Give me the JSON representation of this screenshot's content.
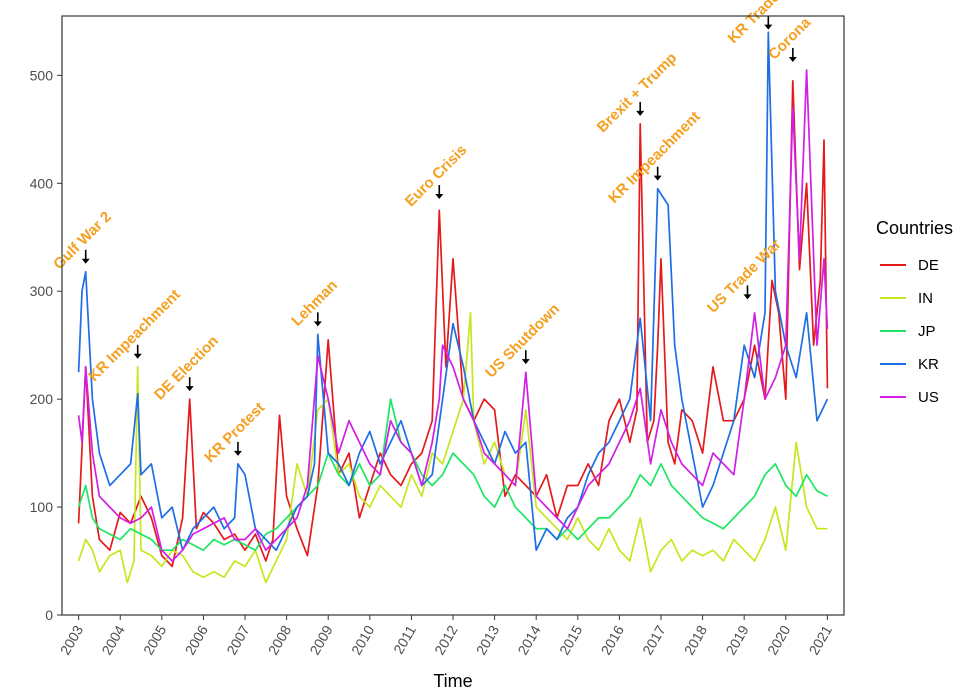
{
  "chart_data": {
    "type": "line",
    "xlabel": "Time",
    "ylabel": "",
    "xlim": [
      2002.6,
      2021.4
    ],
    "ylim": [
      0,
      555
    ],
    "x_ticks": [
      2003,
      2004,
      2005,
      2006,
      2007,
      2008,
      2009,
      2010,
      2011,
      2012,
      2013,
      2014,
      2015,
      2016,
      2017,
      2018,
      2019,
      2020,
      2021
    ],
    "x_tick_labels": [
      "2003",
      "2004",
      "2005",
      "2006",
      "2007",
      "2008",
      "2009",
      "2010",
      "2011",
      "2012",
      "2013",
      "2014",
      "2015",
      "2016",
      "2017",
      "2018",
      "2019",
      "2020",
      "2021"
    ],
    "y_ticks": [
      0,
      100,
      200,
      300,
      400,
      500
    ],
    "y_tick_labels": [
      "0",
      "100",
      "200",
      "300",
      "400",
      "500"
    ],
    "grid": false,
    "legend": {
      "title": "Countries",
      "position": "right"
    },
    "series": [
      {
        "name": "DE",
        "color": "#e41a1c",
        "x": [
          2003.0,
          2003.17,
          2003.33,
          2003.5,
          2003.75,
          2004.0,
          2004.25,
          2004.5,
          2004.75,
          2005.0,
          2005.25,
          2005.5,
          2005.67,
          2005.83,
          2006.0,
          2006.25,
          2006.5,
          2006.75,
          2007.0,
          2007.25,
          2007.5,
          2007.67,
          2007.83,
          2008.0,
          2008.25,
          2008.5,
          2008.75,
          2009.0,
          2009.25,
          2009.5,
          2009.75,
          2010.0,
          2010.25,
          2010.5,
          2010.75,
          2011.0,
          2011.25,
          2011.5,
          2011.67,
          2011.83,
          2012.0,
          2012.25,
          2012.5,
          2012.75,
          2013.0,
          2013.25,
          2013.5,
          2013.75,
          2014.0,
          2014.25,
          2014.5,
          2014.75,
          2015.0,
          2015.25,
          2015.5,
          2015.75,
          2016.0,
          2016.25,
          2016.42,
          2016.5,
          2016.67,
          2016.83,
          2016.92,
          2017.0,
          2017.17,
          2017.33,
          2017.5,
          2017.75,
          2018.0,
          2018.25,
          2018.5,
          2018.75,
          2019.0,
          2019.25,
          2019.5,
          2019.67,
          2019.83,
          2020.0,
          2020.17,
          2020.33,
          2020.5,
          2020.67,
          2020.83,
          2020.92,
          2021.0
        ],
        "y": [
          85,
          230,
          110,
          70,
          60,
          95,
          85,
          110,
          90,
          55,
          45,
          90,
          200,
          80,
          95,
          85,
          70,
          75,
          60,
          75,
          50,
          70,
          185,
          110,
          80,
          55,
          120,
          255,
          130,
          150,
          90,
          120,
          150,
          130,
          120,
          140,
          150,
          180,
          375,
          230,
          330,
          200,
          180,
          200,
          190,
          110,
          130,
          120,
          110,
          130,
          90,
          120,
          120,
          140,
          120,
          180,
          200,
          160,
          190,
          455,
          160,
          180,
          250,
          330,
          160,
          140,
          190,
          180,
          150,
          230,
          180,
          180,
          200,
          250,
          200,
          310,
          280,
          200,
          495,
          320,
          400,
          250,
          310,
          440,
          210
        ]
      },
      {
        "name": "IN",
        "color": "#c8e61e",
        "x": [
          2003.0,
          2003.17,
          2003.33,
          2003.5,
          2003.75,
          2004.0,
          2004.17,
          2004.33,
          2004.42,
          2004.5,
          2004.75,
          2005.0,
          2005.25,
          2005.5,
          2005.75,
          2006.0,
          2006.25,
          2006.5,
          2006.75,
          2007.0,
          2007.25,
          2007.5,
          2007.75,
          2008.0,
          2008.25,
          2008.5,
          2008.75,
          2009.0,
          2009.25,
          2009.5,
          2009.75,
          2010.0,
          2010.25,
          2010.5,
          2010.75,
          2011.0,
          2011.25,
          2011.5,
          2011.75,
          2012.0,
          2012.25,
          2012.42,
          2012.5,
          2012.75,
          2013.0,
          2013.25,
          2013.5,
          2013.75,
          2014.0,
          2014.25,
          2014.5,
          2014.75,
          2015.0,
          2015.25,
          2015.5,
          2015.75,
          2016.0,
          2016.25,
          2016.5,
          2016.75,
          2017.0,
          2017.25,
          2017.5,
          2017.75,
          2018.0,
          2018.25,
          2018.5,
          2018.75,
          2019.0,
          2019.25,
          2019.5,
          2019.75,
          2020.0,
          2020.25,
          2020.5,
          2020.75,
          2021.0
        ],
        "y": [
          50,
          70,
          60,
          40,
          55,
          60,
          30,
          50,
          230,
          60,
          55,
          45,
          60,
          55,
          40,
          35,
          40,
          35,
          50,
          45,
          60,
          30,
          50,
          70,
          140,
          110,
          190,
          200,
          130,
          140,
          110,
          100,
          120,
          110,
          100,
          130,
          110,
          150,
          140,
          170,
          200,
          280,
          180,
          140,
          160,
          130,
          120,
          190,
          100,
          90,
          80,
          70,
          90,
          70,
          60,
          80,
          60,
          50,
          90,
          40,
          60,
          70,
          50,
          60,
          55,
          60,
          50,
          70,
          60,
          50,
          70,
          100,
          60,
          160,
          100,
          80,
          80
        ]
      },
      {
        "name": "JP",
        "color": "#1ee664",
        "x": [
          2003.0,
          2003.17,
          2003.33,
          2003.5,
          2003.75,
          2004.0,
          2004.25,
          2004.5,
          2004.75,
          2005.0,
          2005.25,
          2005.5,
          2005.75,
          2006.0,
          2006.25,
          2006.5,
          2006.75,
          2007.0,
          2007.25,
          2007.5,
          2007.75,
          2008.0,
          2008.25,
          2008.5,
          2008.75,
          2009.0,
          2009.25,
          2009.5,
          2009.75,
          2010.0,
          2010.25,
          2010.5,
          2010.75,
          2011.0,
          2011.25,
          2011.5,
          2011.75,
          2012.0,
          2012.25,
          2012.5,
          2012.75,
          2013.0,
          2013.25,
          2013.5,
          2013.75,
          2014.0,
          2014.25,
          2014.5,
          2014.75,
          2015.0,
          2015.25,
          2015.5,
          2015.75,
          2016.0,
          2016.25,
          2016.5,
          2016.75,
          2017.0,
          2017.25,
          2017.5,
          2017.75,
          2018.0,
          2018.25,
          2018.5,
          2018.75,
          2019.0,
          2019.25,
          2019.5,
          2019.75,
          2020.0,
          2020.25,
          2020.5,
          2020.75,
          2021.0
        ],
        "y": [
          100,
          120,
          90,
          80,
          75,
          70,
          80,
          75,
          70,
          60,
          60,
          70,
          65,
          60,
          70,
          65,
          70,
          65,
          60,
          75,
          80,
          90,
          100,
          110,
          120,
          150,
          130,
          120,
          140,
          120,
          130,
          200,
          160,
          150,
          130,
          120,
          130,
          150,
          140,
          130,
          110,
          100,
          120,
          100,
          90,
          80,
          80,
          70,
          80,
          70,
          80,
          90,
          90,
          100,
          110,
          130,
          120,
          140,
          120,
          110,
          100,
          90,
          85,
          80,
          90,
          100,
          110,
          130,
          140,
          120,
          110,
          130,
          115,
          110
        ]
      },
      {
        "name": "KR",
        "color": "#1e6ee6",
        "x": [
          2003.0,
          2003.08,
          2003.17,
          2003.33,
          2003.5,
          2003.75,
          2004.0,
          2004.25,
          2004.42,
          2004.5,
          2004.75,
          2005.0,
          2005.25,
          2005.5,
          2005.75,
          2006.0,
          2006.25,
          2006.5,
          2006.75,
          2006.83,
          2007.0,
          2007.25,
          2007.5,
          2007.75,
          2008.0,
          2008.25,
          2008.5,
          2008.67,
          2008.75,
          2009.0,
          2009.25,
          2009.5,
          2009.75,
          2010.0,
          2010.25,
          2010.5,
          2010.75,
          2011.0,
          2011.25,
          2011.5,
          2011.75,
          2012.0,
          2012.25,
          2012.5,
          2012.75,
          2013.0,
          2013.25,
          2013.5,
          2013.75,
          2014.0,
          2014.25,
          2014.5,
          2014.75,
          2015.0,
          2015.25,
          2015.5,
          2015.75,
          2016.0,
          2016.25,
          2016.5,
          2016.75,
          2016.92,
          2017.0,
          2017.17,
          2017.33,
          2017.5,
          2017.75,
          2018.0,
          2018.25,
          2018.5,
          2018.75,
          2019.0,
          2019.25,
          2019.5,
          2019.58,
          2019.75,
          2020.0,
          2020.25,
          2020.5,
          2020.75,
          2021.0
        ],
        "y": [
          225,
          300,
          318,
          200,
          150,
          120,
          130,
          140,
          205,
          130,
          140,
          90,
          100,
          60,
          80,
          90,
          100,
          80,
          90,
          140,
          130,
          80,
          70,
          60,
          80,
          100,
          110,
          140,
          260,
          150,
          140,
          120,
          150,
          170,
          140,
          160,
          180,
          150,
          120,
          130,
          200,
          270,
          230,
          180,
          160,
          140,
          170,
          150,
          160,
          60,
          80,
          70,
          90,
          100,
          130,
          150,
          160,
          180,
          200,
          275,
          180,
          395,
          390,
          380,
          250,
          200,
          150,
          100,
          120,
          150,
          180,
          250,
          220,
          280,
          540,
          300,
          250,
          220,
          280,
          180,
          200
        ]
      },
      {
        "name": "US",
        "color": "#d21ee6",
        "x": [
          2003.0,
          2003.08,
          2003.17,
          2003.33,
          2003.5,
          2003.75,
          2004.0,
          2004.25,
          2004.5,
          2004.75,
          2005.0,
          2005.25,
          2005.5,
          2005.75,
          2006.0,
          2006.25,
          2006.5,
          2006.75,
          2007.0,
          2007.25,
          2007.5,
          2007.75,
          2008.0,
          2008.25,
          2008.5,
          2008.75,
          2009.0,
          2009.25,
          2009.5,
          2009.75,
          2010.0,
          2010.25,
          2010.5,
          2010.75,
          2011.0,
          2011.25,
          2011.5,
          2011.67,
          2011.75,
          2012.0,
          2012.25,
          2012.5,
          2012.75,
          2013.0,
          2013.25,
          2013.5,
          2013.75,
          2014.0,
          2014.25,
          2014.5,
          2014.75,
          2015.0,
          2015.25,
          2015.5,
          2015.75,
          2016.0,
          2016.25,
          2016.5,
          2016.75,
          2017.0,
          2017.25,
          2017.5,
          2017.75,
          2018.0,
          2018.25,
          2018.5,
          2018.75,
          2019.0,
          2019.25,
          2019.5,
          2019.75,
          2020.0,
          2020.17,
          2020.33,
          2020.5,
          2020.75,
          2020.92,
          2021.0
        ],
        "y": [
          185,
          160,
          230,
          150,
          110,
          100,
          90,
          85,
          90,
          100,
          60,
          50,
          60,
          75,
          80,
          85,
          90,
          70,
          70,
          80,
          60,
          70,
          80,
          90,
          120,
          240,
          200,
          150,
          180,
          160,
          140,
          130,
          180,
          160,
          150,
          120,
          160,
          200,
          250,
          230,
          200,
          180,
          150,
          140,
          130,
          120,
          225,
          110,
          100,
          90,
          80,
          100,
          120,
          130,
          140,
          160,
          180,
          210,
          140,
          190,
          160,
          140,
          130,
          120,
          150,
          140,
          130,
          200,
          280,
          200,
          220,
          250,
          470,
          330,
          505,
          250,
          330,
          265
        ]
      }
    ],
    "annotations": [
      {
        "label": "Gulf War 2",
        "x": 2003.17,
        "y": 318
      },
      {
        "label": "KR Impeachment",
        "x": 2004.42,
        "y": 230
      },
      {
        "label": "DE Election",
        "x": 2005.67,
        "y": 200
      },
      {
        "label": "KR Protest",
        "x": 2006.83,
        "y": 140
      },
      {
        "label": "Lehman",
        "x": 2008.75,
        "y": 260
      },
      {
        "label": "Euro Crisis",
        "x": 2011.67,
        "y": 378
      },
      {
        "label": "US Shutdown",
        "x": 2013.75,
        "y": 225
      },
      {
        "label": "Brexit + Trump",
        "x": 2016.5,
        "y": 455
      },
      {
        "label": "KR Impeachment",
        "x": 2016.92,
        "y": 395
      },
      {
        "label": "US Trade War",
        "x": 2019.08,
        "y": 285
      },
      {
        "label": "KR Trade War",
        "x": 2019.58,
        "y": 535
      },
      {
        "label": "Corona",
        "x": 2020.17,
        "y": 505
      }
    ]
  }
}
